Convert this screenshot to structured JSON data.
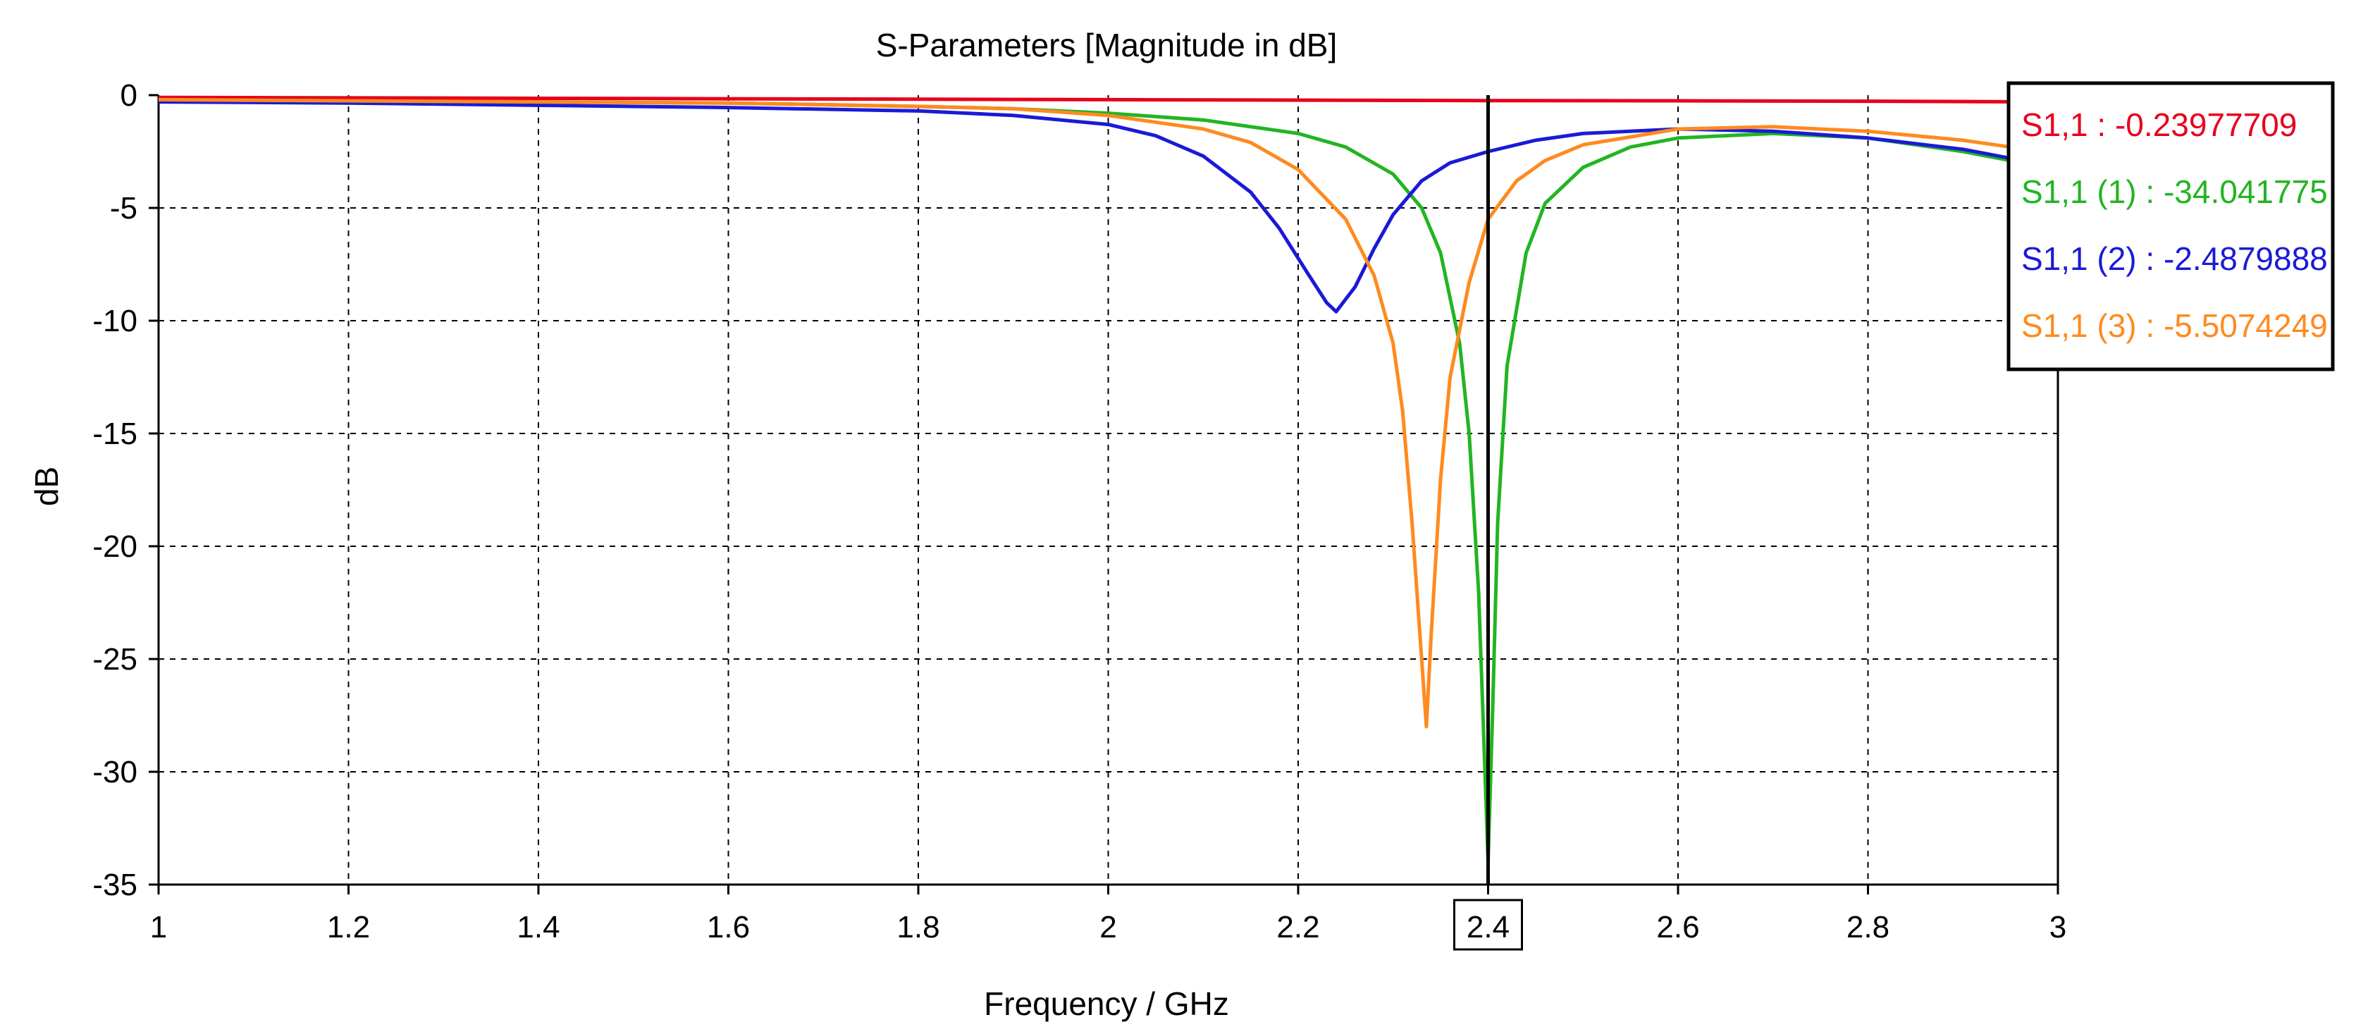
{
  "chart_data": {
    "type": "line",
    "title": "S-Parameters [Magnitude in dB]",
    "xlabel": "Frequency / GHz",
    "ylabel": "dB",
    "xlim": [
      1,
      3
    ],
    "ylim": [
      -35,
      0
    ],
    "xticks": [
      1,
      1.2,
      1.4,
      1.6,
      1.8,
      2,
      2.2,
      2.4,
      2.6,
      2.8,
      3
    ],
    "xtick_labels": [
      "1",
      "1.2",
      "1.4",
      "1.6",
      "1.8",
      "2",
      "2.2",
      "2.4",
      "2.6",
      "2.8",
      "3"
    ],
    "yticks": [
      0,
      -5,
      -10,
      -15,
      -20,
      -25,
      -30,
      -35
    ],
    "ytick_labels": [
      "0",
      "-5",
      "-10",
      "-15",
      "-20",
      "-25",
      "-30",
      "-35"
    ],
    "grid": true,
    "marker": {
      "x": 2.4,
      "label": "2.4"
    },
    "legend_position": "top-right",
    "series": [
      {
        "name": "S1,1",
        "color": "#e8001c",
        "readout": "S1,1 : -0.23977709",
        "x": [
          1,
          1.5,
          2,
          2.4,
          2.6,
          2.8,
          3
        ],
        "y": [
          -0.1,
          -0.15,
          -0.2,
          -0.24,
          -0.25,
          -0.27,
          -0.3
        ]
      },
      {
        "name": "S1,1 (1)",
        "color": "#22b522",
        "readout": "S1,1 (1) : -34.041775",
        "x": [
          1,
          1.2,
          1.4,
          1.6,
          1.8,
          1.9,
          2.0,
          2.1,
          2.2,
          2.25,
          2.3,
          2.33,
          2.35,
          2.37,
          2.38,
          2.39,
          2.395,
          2.4,
          2.405,
          2.41,
          2.42,
          2.44,
          2.46,
          2.5,
          2.55,
          2.6,
          2.7,
          2.8,
          2.9,
          3.0
        ],
        "y": [
          -0.2,
          -0.25,
          -0.3,
          -0.35,
          -0.5,
          -0.6,
          -0.8,
          -1.1,
          -1.7,
          -2.3,
          -3.5,
          -5.0,
          -7.0,
          -11.0,
          -15.0,
          -22.0,
          -28.0,
          -34.0,
          -27.0,
          -19.0,
          -12.0,
          -7.0,
          -4.8,
          -3.2,
          -2.3,
          -1.9,
          -1.7,
          -1.9,
          -2.5,
          -3.3
        ]
      },
      {
        "name": "S1,1 (2)",
        "color": "#1a1ad6",
        "readout": "S1,1 (2) : -2.4879888",
        "x": [
          1,
          1.2,
          1.4,
          1.6,
          1.8,
          1.9,
          2.0,
          2.05,
          2.1,
          2.15,
          2.18,
          2.21,
          2.23,
          2.24,
          2.26,
          2.28,
          2.3,
          2.33,
          2.36,
          2.4,
          2.45,
          2.5,
          2.6,
          2.7,
          2.8,
          2.9,
          3.0
        ],
        "y": [
          -0.3,
          -0.35,
          -0.45,
          -0.55,
          -0.7,
          -0.9,
          -1.3,
          -1.8,
          -2.7,
          -4.3,
          -5.9,
          -7.9,
          -9.2,
          -9.6,
          -8.5,
          -6.8,
          -5.3,
          -3.8,
          -3.0,
          -2.5,
          -2.0,
          -1.7,
          -1.5,
          -1.6,
          -1.9,
          -2.4,
          -3.2
        ]
      },
      {
        "name": "S1,1 (3)",
        "color": "#ff8a1f",
        "readout": "S1,1 (3) : -5.5074249",
        "x": [
          1,
          1.2,
          1.4,
          1.6,
          1.8,
          1.9,
          2.0,
          2.1,
          2.15,
          2.2,
          2.25,
          2.28,
          2.3,
          2.31,
          2.32,
          2.33,
          2.335,
          2.34,
          2.35,
          2.36,
          2.38,
          2.4,
          2.43,
          2.46,
          2.5,
          2.6,
          2.7,
          2.8,
          2.9,
          3.0
        ],
        "y": [
          -0.2,
          -0.25,
          -0.3,
          -0.35,
          -0.5,
          -0.6,
          -0.9,
          -1.5,
          -2.1,
          -3.3,
          -5.5,
          -8.0,
          -11.0,
          -14.0,
          -19.0,
          -25.0,
          -28.0,
          -24.0,
          -17.0,
          -12.5,
          -8.3,
          -5.5,
          -3.8,
          -2.9,
          -2.2,
          -1.5,
          -1.4,
          -1.6,
          -2.0,
          -2.6
        ]
      }
    ]
  }
}
